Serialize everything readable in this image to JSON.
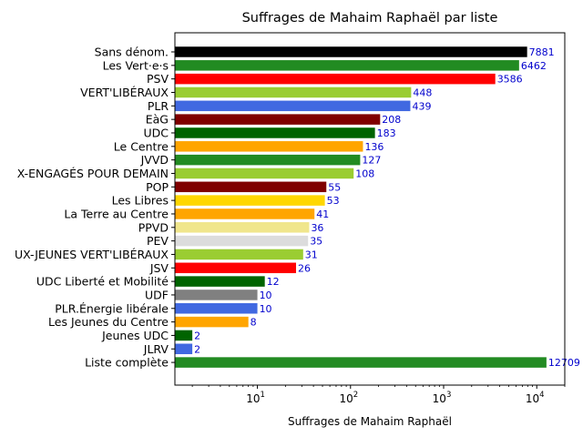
{
  "chart_data": {
    "type": "bar",
    "orientation": "horizontal",
    "title": "Suffrages de Mahaim Raphaël par liste",
    "xlabel": "Suffrages de Mahaim Raphaël",
    "ylabel": "",
    "xscale": "log",
    "xlim": [
      1.3,
      20000
    ],
    "x_ticks": [
      {
        "base": "10",
        "exp": "1",
        "value": 10
      },
      {
        "base": "10",
        "exp": "2",
        "value": 100
      },
      {
        "base": "10",
        "exp": "3",
        "value": 1000
      },
      {
        "base": "10",
        "exp": "4",
        "value": 10000
      }
    ],
    "value_label_color": "#0000cd",
    "grid": false,
    "bars": [
      {
        "label": "Sans dénom.",
        "value": 7881,
        "value_label": "7881",
        "color": "#000000"
      },
      {
        "label": "Les Vert·e·s",
        "value": 6462,
        "value_label": "6462",
        "color": "#228b22"
      },
      {
        "label": "PSV",
        "value": 3586,
        "value_label": "3586",
        "color": "#ff0000"
      },
      {
        "label": "VERT'LIBÉRAUX",
        "value": 448,
        "value_label": "448",
        "color": "#9acd32"
      },
      {
        "label": "PLR",
        "value": 439,
        "value_label": "439",
        "color": "#4169e1"
      },
      {
        "label": "EàG",
        "value": 208,
        "value_label": "208",
        "color": "#800000"
      },
      {
        "label": "UDC",
        "value": 183,
        "value_label": "183",
        "color": "#006400"
      },
      {
        "label": "Le Centre",
        "value": 136,
        "value_label": "136",
        "color": "#ffa500"
      },
      {
        "label": "JVVD",
        "value": 127,
        "value_label": "127",
        "color": "#228b22"
      },
      {
        "label": "X-ENGAGÉS POUR DEMAIN",
        "value": 108,
        "value_label": "108",
        "color": "#9acd32"
      },
      {
        "label": "POP",
        "value": 55,
        "value_label": "55",
        "color": "#800000"
      },
      {
        "label": "Les Libres",
        "value": 53,
        "value_label": "53",
        "color": "#ffd700"
      },
      {
        "label": "La Terre au Centre",
        "value": 41,
        "value_label": "41",
        "color": "#ffa500"
      },
      {
        "label": "PPVD",
        "value": 36,
        "value_label": "36",
        "color": "#f0e68c"
      },
      {
        "label": "PEV",
        "value": 35,
        "value_label": "35",
        "color": "#dcdcdc"
      },
      {
        "label": "UX-JEUNES VERT'LIBÉRAUX",
        "value": 31,
        "value_label": "31",
        "color": "#9acd32"
      },
      {
        "label": "JSV",
        "value": 26,
        "value_label": "26",
        "color": "#ff0000"
      },
      {
        "label": "UDC Liberté et Mobilité",
        "value": 12,
        "value_label": "12",
        "color": "#006400"
      },
      {
        "label": "UDF",
        "value": 10,
        "value_label": "10",
        "color": "#808080"
      },
      {
        "label": "PLR.Énergie libérale",
        "value": 10,
        "value_label": "10",
        "color": "#4169e1"
      },
      {
        "label": "Les Jeunes du Centre",
        "value": 8,
        "value_label": "8",
        "color": "#ffa500"
      },
      {
        "label": "Jeunes UDC",
        "value": 2,
        "value_label": "2",
        "color": "#006400"
      },
      {
        "label": "JLRV",
        "value": 2,
        "value_label": "2",
        "color": "#4169e1"
      },
      {
        "label": "Liste complète",
        "value": 12709,
        "value_label": "12709",
        "color": "#228b22"
      }
    ]
  }
}
